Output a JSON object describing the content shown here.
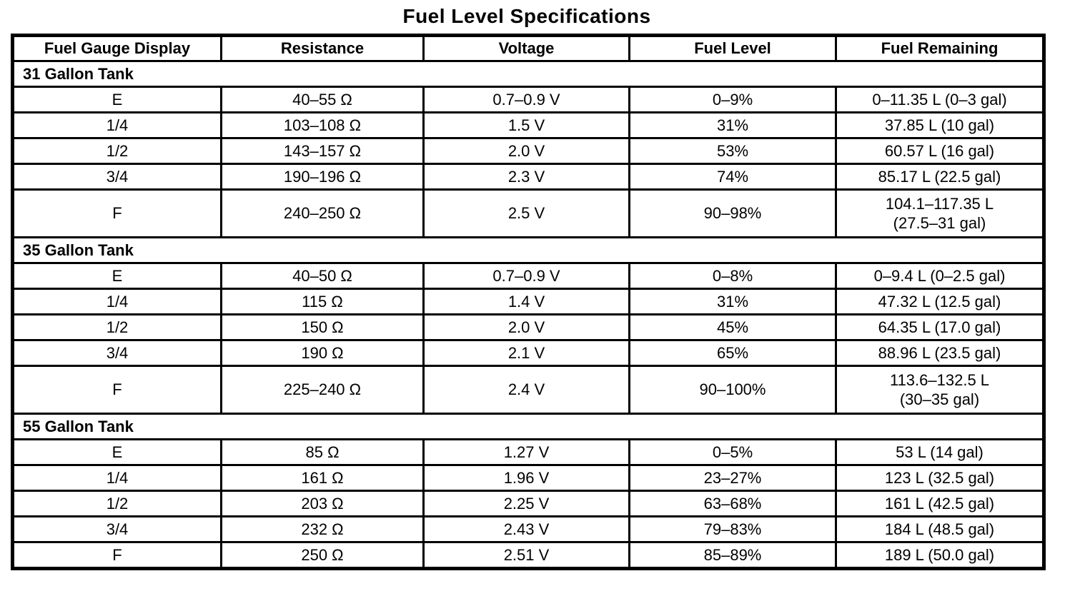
{
  "title": "Fuel Level Specifications",
  "table": {
    "columns": [
      "Fuel Gauge Display",
      "Resistance",
      "Voltage",
      "Fuel Level",
      "Fuel Remaining"
    ],
    "sections": [
      {
        "label": "31 Gallon Tank",
        "rows": [
          [
            "E",
            "40–55 Ω",
            "0.7–0.9 V",
            "0–9%",
            "0–11.35 L (0–3 gal)"
          ],
          [
            "1/4",
            "103–108 Ω",
            "1.5 V",
            "31%",
            "37.85 L (10 gal)"
          ],
          [
            "1/2",
            "143–157 Ω",
            "2.0 V",
            "53%",
            "60.57 L (16 gal)"
          ],
          [
            "3/4",
            "190–196 Ω",
            "2.3 V",
            "74%",
            "85.17 L (22.5 gal)"
          ],
          [
            "F",
            "240–250 Ω",
            "2.5 V",
            "90–98%",
            "104.1–117.35 L\n(27.5–31 gal)"
          ]
        ]
      },
      {
        "label": "35 Gallon Tank",
        "rows": [
          [
            "E",
            "40–50 Ω",
            "0.7–0.9 V",
            "0–8%",
            "0–9.4 L (0–2.5 gal)"
          ],
          [
            "1/4",
            "115 Ω",
            "1.4 V",
            "31%",
            "47.32 L (12.5 gal)"
          ],
          [
            "1/2",
            "150 Ω",
            "2.0 V",
            "45%",
            "64.35 L (17.0 gal)"
          ],
          [
            "3/4",
            "190 Ω",
            "2.1 V",
            "65%",
            "88.96 L (23.5 gal)"
          ],
          [
            "F",
            "225–240 Ω",
            "2.4 V",
            "90–100%",
            "113.6–132.5 L\n(30–35 gal)"
          ]
        ]
      },
      {
        "label": "55 Gallon Tank",
        "rows": [
          [
            "E",
            "85 Ω",
            "1.27 V",
            "0–5%",
            "53 L (14 gal)"
          ],
          [
            "1/4",
            "161 Ω",
            "1.96 V",
            "23–27%",
            "123 L (32.5 gal)"
          ],
          [
            "1/2",
            "203 Ω",
            "2.25 V",
            "63–68%",
            "161 L (42.5 gal)"
          ],
          [
            "3/4",
            "232 Ω",
            "2.43 V",
            "79–83%",
            "184 L (48.5 gal)"
          ],
          [
            "F",
            "250 Ω",
            "2.51 V",
            "85–89%",
            "189 L (50.0 gal)"
          ]
        ]
      }
    ]
  }
}
